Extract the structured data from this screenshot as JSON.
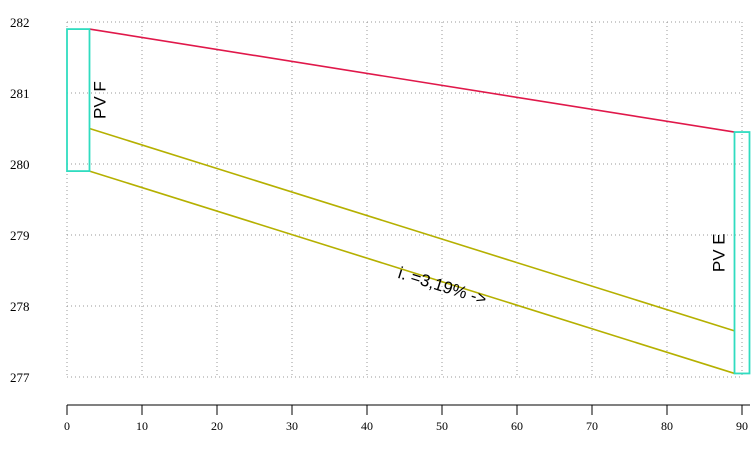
{
  "chart_data": {
    "type": "line",
    "title": "",
    "xlabel": "",
    "ylabel": "",
    "xlim": [
      0,
      90
    ],
    "ylim": [
      277,
      282
    ],
    "grid": true,
    "x_ticks": [
      0,
      10,
      20,
      30,
      40,
      50,
      60,
      70,
      80,
      90
    ],
    "y_ticks": [
      277,
      278,
      279,
      280,
      281,
      282
    ],
    "colors": {
      "terrain": "#e0184a",
      "pipe": "#b5b000",
      "well": "#30dcc0",
      "grid": "#9a9a9a",
      "axis": "#000000"
    },
    "series": [
      {
        "role": "terrain",
        "x": [
          3,
          89
        ],
        "y": [
          281.9,
          280.45
        ]
      },
      {
        "role": "pipe-top",
        "x": [
          3,
          89
        ],
        "y": [
          280.5,
          277.65
        ]
      },
      {
        "role": "pipe-bottom",
        "x": [
          3,
          89
        ],
        "y": [
          279.9,
          277.05
        ]
      }
    ],
    "wells": [
      {
        "label": "PV F",
        "x0": 0,
        "x1": 3,
        "y_top": 281.9,
        "y_bottom": 279.9
      },
      {
        "label": "PV E",
        "x0": 89,
        "x1": 91,
        "y_top": 280.45,
        "y_bottom": 277.05
      }
    ],
    "annotation": {
      "text": "i. =3,19% ->",
      "x": 44,
      "y": 278.4
    }
  }
}
